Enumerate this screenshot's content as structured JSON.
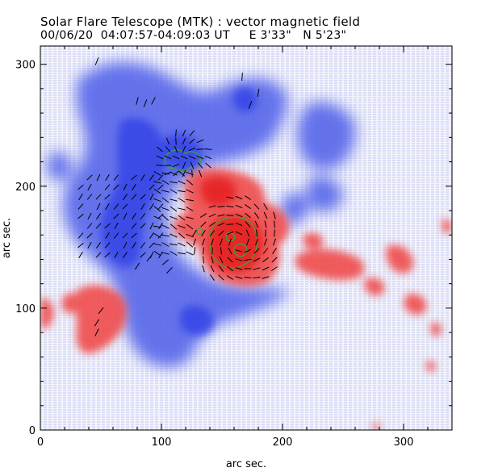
{
  "header": {
    "title": "Solar Flare Telescope (MTK) : vector magnetic field",
    "subtitle": "00/06/20  04:07:57-04:09:03 UT     E 3'33\"   N 5'23\""
  },
  "chart_data": {
    "type": "heatmap",
    "description_kind": "vector magnetogram",
    "xlabel": "arc sec.",
    "ylabel": "arc sec.",
    "xlim": [
      0,
      340
    ],
    "ylim": [
      0,
      315
    ],
    "xticks": [
      0,
      100,
      200,
      300
    ],
    "yticks": [
      0,
      100,
      200,
      300
    ],
    "colors": {
      "positive_polarity": "#ee3333",
      "negative_polarity": "#4455ee",
      "background_noise": "#b8bdf0",
      "contour": "#33aa33",
      "vector": "#000000"
    }
  }
}
